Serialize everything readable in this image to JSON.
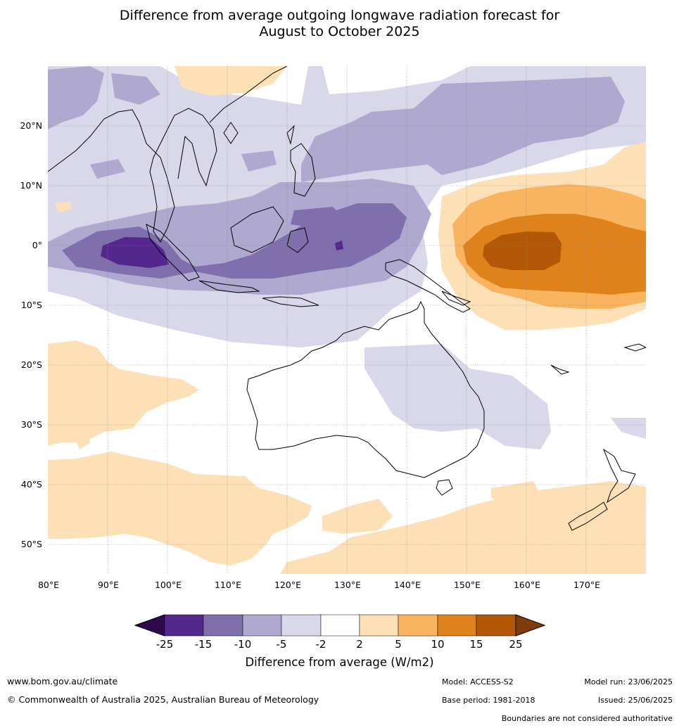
{
  "title": {
    "line1": "Difference from average outgoing longwave radiation forecast for",
    "line2": "August to October 2025"
  },
  "map": {
    "region": "Indo-Pacific / Australia",
    "lon_range": [
      80,
      180
    ],
    "lat_range": [
      -55,
      30
    ],
    "lat_labels": [
      "20°N",
      "10°N",
      "0°",
      "10°S",
      "20°S",
      "30°S",
      "40°S",
      "50°S"
    ],
    "lon_labels": [
      "80°E",
      "90°E",
      "100°E",
      "110°E",
      "120°E",
      "130°E",
      "140°E",
      "150°E",
      "160°E",
      "170°E"
    ],
    "gridlines": true
  },
  "legend": {
    "label": "Difference from average (W/m2)",
    "ticks": [
      "-25",
      "-15",
      "-10",
      "-5",
      "-2",
      "2",
      "5",
      "10",
      "15",
      "25"
    ],
    "colors": {
      "below_-25": "#2d0a4e",
      "-25_-15": "#54278f",
      "-15_-10": "#7f6fac",
      "-10_-5": "#afa9d0",
      "-5_-2": "#d9d8ea",
      "-2_2": "#ffffff",
      "2_5": "#fee0b6",
      "5_10": "#fab35f",
      "10_15": "#e0821b",
      "15_25": "#b35807",
      "above_25": "#7f3b08"
    }
  },
  "footer": {
    "url": "www.bom.gov.au/climate",
    "copyright": "© Commonwealth of Australia 2025, Australian Bureau of Meteorology",
    "model": "Model: ACCESS-S2",
    "base_period": "Base period: 1981-2018",
    "model_run": "Model run: 23/06/2025",
    "issued": "Issued: 25/06/2025",
    "boundaries_note": "Boundaries are not considered authoritative"
  }
}
